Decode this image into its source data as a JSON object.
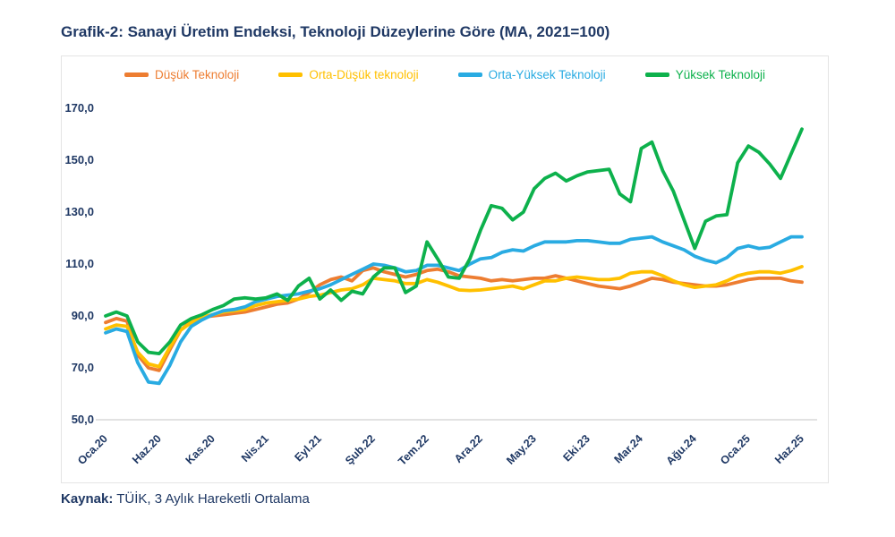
{
  "chart_data": {
    "type": "line",
    "title": "Grafik-2: Sanayi Üretim Endeksi, Teknoloji Düzeylerine Göre (MA, 2021=100)",
    "n_points": 66,
    "x_range_note": "monthly, Oca.20 (Jan 2020) through Haz.25 (Jun 2025)",
    "x_tick_labels": [
      "Oca.20",
      "Haz.20",
      "Kas.20",
      "Nis.21",
      "Eyl.21",
      "Şub.22",
      "Tem.22",
      "Ara.22",
      "May.23",
      "Eki.23",
      "Mar.24",
      "Ağu.24",
      "Oca.25",
      "Haz.25"
    ],
    "x_tick_positions": [
      0,
      5,
      10,
      15,
      20,
      25,
      30,
      35,
      40,
      45,
      50,
      55,
      60,
      65
    ],
    "ylim": [
      50,
      170
    ],
    "y_tick_values": [
      170,
      150,
      130,
      110,
      90,
      70,
      50
    ],
    "y_tick_labels": [
      "170,0",
      "150,0",
      "130,0",
      "110,0",
      "90,0",
      "70,0",
      "50,0"
    ],
    "grid": false,
    "legend_position": "top",
    "series": [
      {
        "name": "Düşük Teknoloji",
        "color": "#ED7D31",
        "values": [
          87.5,
          89,
          88,
          75,
          70,
          69,
          77,
          84.5,
          88,
          89.5,
          90,
          90.5,
          91,
          91.5,
          92.5,
          93.5,
          94.5,
          95,
          96.5,
          99,
          102,
          104,
          105,
          103.5,
          107.5,
          108.5,
          107,
          106,
          105,
          106,
          107.5,
          108,
          107,
          105.5,
          105,
          104.5,
          103.5,
          104,
          103.5,
          104,
          104.5,
          104.5,
          105.5,
          104.5,
          103.5,
          102.5,
          101.5,
          101,
          100.5,
          101.5,
          103,
          104.5,
          104,
          103,
          102.5,
          102,
          101.5,
          101.5,
          102,
          103,
          104,
          104.5,
          104.5,
          104.5,
          103.5,
          103
        ]
      },
      {
        "name": "Orta-Düşük teknoloji",
        "color": "#FFC000",
        "values": [
          85,
          86.5,
          86,
          76,
          71.5,
          70.5,
          78,
          84.5,
          87.5,
          89.5,
          90.5,
          91.5,
          92,
          92.5,
          94,
          95,
          95.5,
          96,
          96.5,
          97.5,
          98,
          99,
          100,
          100.5,
          102,
          104.5,
          104,
          103.5,
          102.5,
          102.5,
          104,
          103,
          101.5,
          100,
          99.8,
          100,
          100.5,
          101,
          101.5,
          100.5,
          102,
          103.5,
          103.5,
          104.5,
          105,
          104.5,
          104,
          104,
          104.5,
          106.5,
          107,
          107,
          105.5,
          103.5,
          102,
          101,
          101.5,
          102,
          103.5,
          105.5,
          106.5,
          107,
          107,
          106.5,
          107.5,
          109
        ]
      },
      {
        "name": "Orta-Yüksek Teknoloji",
        "color": "#29ABE2",
        "values": [
          83.5,
          85,
          84,
          72,
          64.5,
          64,
          71,
          80,
          86,
          88.5,
          90.5,
          92,
          92.5,
          93.5,
          95.5,
          96.5,
          97.5,
          98,
          98.5,
          99.5,
          100.5,
          102,
          104,
          106,
          108,
          110,
          109.5,
          108.5,
          107,
          107.5,
          109.5,
          109.5,
          108.5,
          107.5,
          110,
          112,
          112.5,
          114.5,
          115.5,
          115,
          117,
          118.5,
          118.5,
          118.5,
          119,
          119,
          118.5,
          118,
          118,
          119.5,
          120,
          120.5,
          118.5,
          117,
          115.5,
          113,
          111.5,
          110.5,
          112.5,
          116,
          117,
          116,
          116.5,
          118.5,
          120.5,
          120.5
        ]
      },
      {
        "name": "Yüksek Teknoloji",
        "color": "#0DB14C",
        "values": [
          90,
          91.5,
          90,
          80,
          76,
          75.5,
          80,
          86.5,
          89,
          90.5,
          92.5,
          94,
          96.5,
          97,
          96.5,
          97,
          98.5,
          96,
          101.5,
          104.5,
          96.5,
          100,
          96,
          99.5,
          98.5,
          105,
          108.5,
          108.5,
          99,
          101.5,
          118.5,
          112,
          105,
          104.5,
          112,
          123,
          132.5,
          131.5,
          127,
          130,
          139,
          143,
          145,
          142,
          144,
          145.5,
          146,
          146.5,
          137,
          134,
          154.5,
          157,
          146,
          138,
          127,
          116,
          126.5,
          128.5,
          129,
          149,
          155.5,
          153,
          148.5,
          143,
          152.5,
          162
        ]
      }
    ]
  },
  "source": {
    "label": "Kaynak:",
    "text": " TÜİK, 3 Aylık Hareketli Ortalama"
  },
  "colors": {
    "title_navy": "#1F3864",
    "axis_line": "#D9D9D9",
    "chart_border": "#E4E4E4"
  }
}
